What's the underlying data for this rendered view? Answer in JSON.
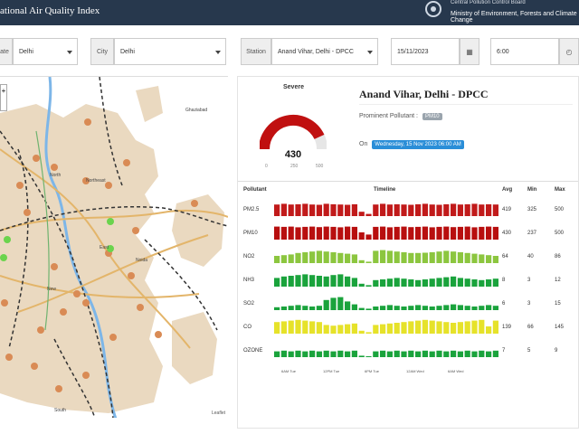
{
  "header": {
    "title": "ational Air Quality Index",
    "org_line1": "Central Pollution Control Board",
    "org_line2": "Ministry of Environment, Forests and Climate Change"
  },
  "filters": {
    "state_label": "ate",
    "state_value": "Delhi",
    "city_label": "City",
    "city_value": "Delhi",
    "station_label": "Station",
    "station_value": "Anand Vihar, Delhi - DPCC",
    "date_value": "15/11/2023",
    "time_value": "6:00"
  },
  "map": {
    "labels": [
      "Ghaziabad",
      "North",
      "Northeast",
      "Noida",
      "East",
      "New",
      "South"
    ],
    "attribution": "Leaflet"
  },
  "gauge": {
    "category": "Severe",
    "value": "430",
    "min_label": "0",
    "mid_label": "250",
    "max_label": "500",
    "fraction": 0.86,
    "color": "#c01010"
  },
  "station": {
    "name": "Anand Vihar, Delhi - DPCC",
    "prominent_label": "Prominent Pollutant :",
    "prominent_value": "PM10",
    "on_label": "On",
    "timestamp": "Wednesday, 15 Nov 2023 06:00 AM"
  },
  "table": {
    "headers": {
      "pollutant": "Pollutant",
      "timeline": "Timeline",
      "avg": "Avg",
      "min": "Min",
      "max": "Max"
    },
    "rows": [
      {
        "name": "PM2.5",
        "avg": "419",
        "min": "325",
        "max": "500",
        "color": "#c11a1a",
        "levels": [
          0.8,
          0.85,
          0.8,
          0.82,
          0.85,
          0.8,
          0.78,
          0.85,
          0.82,
          0.8,
          0.78,
          0.82,
          0.3,
          0.15,
          0.8,
          0.85,
          0.8,
          0.82,
          0.8,
          0.78,
          0.82,
          0.85,
          0.8,
          0.78,
          0.82,
          0.85,
          0.8,
          0.82,
          0.85,
          0.8,
          0.82,
          0.8
        ]
      },
      {
        "name": "PM10",
        "avg": "430",
        "min": "237",
        "max": "500",
        "color": "#b80f0f",
        "levels": [
          0.9,
          0.88,
          0.9,
          0.85,
          0.88,
          0.9,
          0.86,
          0.9,
          0.88,
          0.85,
          0.9,
          0.88,
          0.5,
          0.35,
          0.88,
          0.9,
          0.85,
          0.88,
          0.9,
          0.86,
          0.88,
          0.9,
          0.85,
          0.88,
          0.9,
          0.86,
          0.88,
          0.9,
          0.85,
          0.88,
          0.9,
          0.88
        ]
      },
      {
        "name": "NO2",
        "avg": "64",
        "min": "40",
        "max": "86",
        "color": "#8cc63f",
        "levels": [
          0.5,
          0.55,
          0.6,
          0.7,
          0.75,
          0.8,
          0.85,
          0.8,
          0.75,
          0.7,
          0.65,
          0.6,
          0.2,
          0.1,
          0.85,
          0.9,
          0.85,
          0.8,
          0.75,
          0.7,
          0.7,
          0.72,
          0.75,
          0.8,
          0.85,
          0.8,
          0.75,
          0.7,
          0.65,
          0.6,
          0.55,
          0.5
        ]
      },
      {
        "name": "NH3",
        "avg": "8",
        "min": "3",
        "max": "12",
        "color": "#1aa33c",
        "levels": [
          0.6,
          0.7,
          0.75,
          0.8,
          0.85,
          0.8,
          0.75,
          0.7,
          0.8,
          0.85,
          0.7,
          0.6,
          0.2,
          0.1,
          0.45,
          0.5,
          0.55,
          0.6,
          0.55,
          0.5,
          0.45,
          0.5,
          0.55,
          0.6,
          0.65,
          0.7,
          0.6,
          0.55,
          0.5,
          0.45,
          0.5,
          0.55
        ]
      },
      {
        "name": "SO2",
        "avg": "6",
        "min": "3",
        "max": "15",
        "color": "#1aa33c",
        "levels": [
          0.2,
          0.25,
          0.3,
          0.35,
          0.3,
          0.25,
          0.3,
          0.7,
          0.85,
          0.9,
          0.6,
          0.4,
          0.15,
          0.1,
          0.25,
          0.3,
          0.35,
          0.3,
          0.25,
          0.3,
          0.35,
          0.3,
          0.25,
          0.3,
          0.35,
          0.4,
          0.35,
          0.3,
          0.25,
          0.3,
          0.35,
          0.3
        ]
      },
      {
        "name": "CO",
        "avg": "139",
        "min": "66",
        "max": "145",
        "color": "#e6e22a",
        "levels": [
          0.8,
          0.85,
          0.9,
          0.95,
          0.9,
          0.85,
          0.8,
          0.6,
          0.55,
          0.6,
          0.65,
          0.7,
          0.2,
          0.1,
          0.6,
          0.65,
          0.7,
          0.75,
          0.8,
          0.85,
          0.9,
          0.95,
          0.9,
          0.85,
          0.8,
          0.75,
          0.8,
          0.85,
          0.9,
          0.95,
          0.5,
          0.9
        ]
      },
      {
        "name": "OZONE",
        "avg": "7",
        "min": "5",
        "max": "9",
        "color": "#1aa33c",
        "levels": [
          0.4,
          0.45,
          0.4,
          0.45,
          0.4,
          0.45,
          0.4,
          0.45,
          0.4,
          0.45,
          0.4,
          0.45,
          0.1,
          0.05,
          0.4,
          0.45,
          0.4,
          0.45,
          0.4,
          0.45,
          0.4,
          0.45,
          0.4,
          0.45,
          0.4,
          0.45,
          0.4,
          0.45,
          0.4,
          0.45,
          0.4,
          0.45
        ]
      }
    ],
    "time_ticks": [
      "6AM Tue",
      "12PM Tue",
      "6PM Tue",
      "12AM Wed",
      "6AM Wed"
    ]
  }
}
